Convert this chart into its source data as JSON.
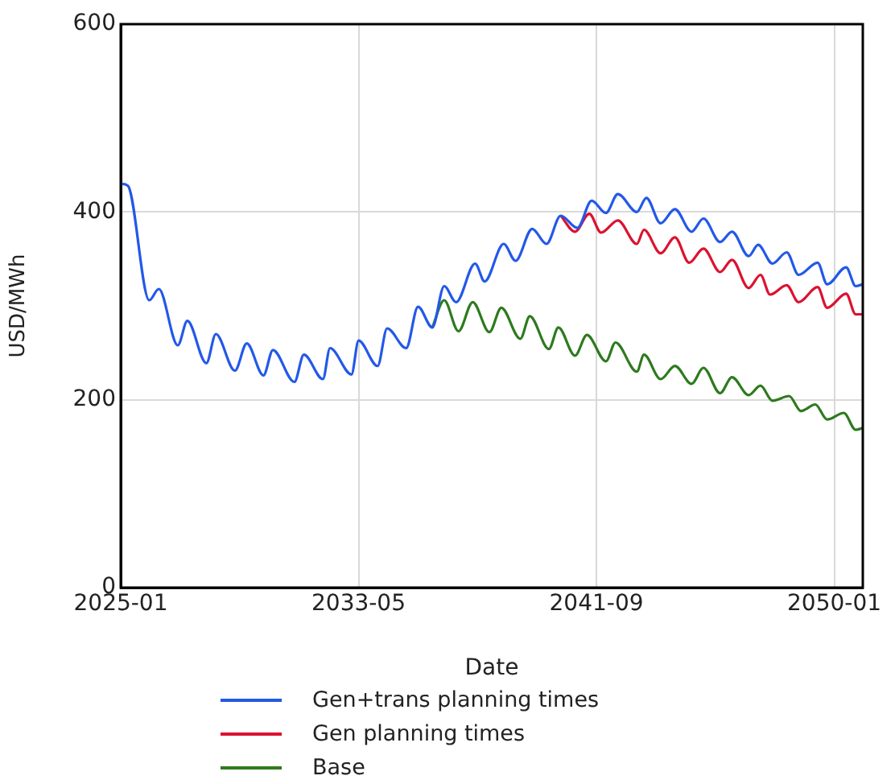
{
  "chart_data": {
    "type": "line",
    "xlabel": "Date",
    "ylabel": "USD/MWh",
    "xlim": [
      "2025-01",
      "2051-01"
    ],
    "xticks": [
      "2025-01",
      "2033-05",
      "2041-09",
      "2050-01"
    ],
    "ylim": [
      0,
      600
    ],
    "yticks": [
      0,
      200,
      400,
      600
    ],
    "grid": true,
    "legend": "bottom",
    "marker": "none",
    "line_style": "solid",
    "series": [
      {
        "name": "Gen+trans planning times",
        "color": "#2358e8",
        "x": [
          "2025-01",
          "2025-04",
          "2026-01",
          "2026-05",
          "2027-01",
          "2027-05",
          "2028-01",
          "2028-05",
          "2029-01",
          "2029-06",
          "2030-01",
          "2030-05",
          "2031-02",
          "2031-06",
          "2032-02",
          "2032-05",
          "2033-02",
          "2033-05",
          "2034-01",
          "2034-05",
          "2035-01",
          "2035-06",
          "2035-12",
          "2036-05",
          "2036-10",
          "2037-06",
          "2037-10",
          "2038-06",
          "2038-11",
          "2039-06",
          "2039-12",
          "2040-06",
          "2041-01",
          "2041-07",
          "2042-01",
          "2042-06",
          "2043-02",
          "2043-06",
          "2043-12",
          "2044-06",
          "2045-01",
          "2045-06",
          "2046-01",
          "2046-06",
          "2047-01",
          "2047-05",
          "2047-11",
          "2048-05",
          "2048-10",
          "2049-06",
          "2049-10",
          "2050-06",
          "2050-10",
          "2051-01"
        ],
        "values": [
          430,
          428,
          306,
          318,
          258,
          284,
          239,
          270,
          231,
          260,
          226,
          253,
          219,
          248,
          222,
          255,
          227,
          263,
          236,
          276,
          255,
          299,
          277,
          321,
          304,
          345,
          326,
          366,
          348,
          382,
          366,
          396,
          383,
          412,
          399,
          419,
          400,
          415,
          388,
          403,
          379,
          393,
          368,
          379,
          353,
          365,
          345,
          357,
          333,
          346,
          323,
          341,
          321,
          323
        ]
      },
      {
        "name": "Gen planning times",
        "color": "#dc1230",
        "x": [
          "2040-06",
          "2040-12",
          "2041-06",
          "2041-11",
          "2042-06",
          "2043-02",
          "2043-05",
          "2043-12",
          "2044-06",
          "2044-12",
          "2045-06",
          "2046-01",
          "2046-06",
          "2047-01",
          "2047-06",
          "2047-10",
          "2048-05",
          "2048-10",
          "2049-06",
          "2049-10",
          "2050-06",
          "2050-10",
          "2051-01"
        ],
        "values": [
          396,
          379,
          398,
          378,
          391,
          366,
          381,
          356,
          373,
          346,
          361,
          336,
          349,
          319,
          333,
          312,
          322,
          304,
          320,
          298,
          313,
          291,
          291
        ]
      },
      {
        "name": "Base",
        "color": "#2e7a1e",
        "x": [
          "2035-12",
          "2036-05",
          "2036-11",
          "2037-05",
          "2037-12",
          "2038-05",
          "2039-01",
          "2039-05",
          "2040-01",
          "2040-05",
          "2040-12",
          "2041-05",
          "2042-01",
          "2042-05",
          "2043-02",
          "2043-05",
          "2043-12",
          "2044-06",
          "2045-01",
          "2045-06",
          "2046-01",
          "2046-06",
          "2047-01",
          "2047-06",
          "2047-11",
          "2048-06",
          "2048-11",
          "2049-05",
          "2049-10",
          "2050-05",
          "2050-10",
          "2051-01"
        ],
        "values": [
          277,
          306,
          273,
          304,
          272,
          298,
          265,
          289,
          254,
          277,
          247,
          269,
          241,
          261,
          230,
          248,
          222,
          236,
          217,
          234,
          207,
          224,
          205,
          215,
          199,
          204,
          188,
          195,
          179,
          186,
          168,
          170
        ]
      }
    ]
  }
}
